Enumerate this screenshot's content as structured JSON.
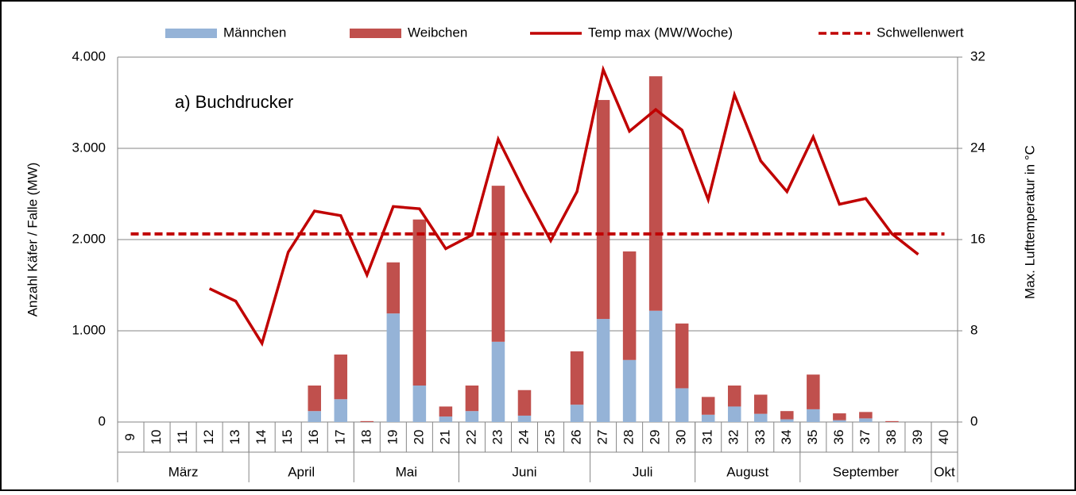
{
  "chart_data": {
    "type": "bar",
    "annotation": "a) Buchdrucker",
    "y_label": "Anzahl Käfer / Falle (MW)",
    "y2_label": "Max. Lufttemperatur in °C",
    "categories": [
      "9",
      "10",
      "11",
      "12",
      "13",
      "14",
      "15",
      "16",
      "17",
      "18",
      "19",
      "20",
      "21",
      "22",
      "23",
      "24",
      "25",
      "26",
      "27",
      "28",
      "29",
      "30",
      "31",
      "32",
      "33",
      "34",
      "35",
      "36",
      "37",
      "38",
      "39",
      "40"
    ],
    "x_groups": [
      {
        "label": "März",
        "from": "9",
        "to": "13"
      },
      {
        "label": "April",
        "from": "14",
        "to": "17"
      },
      {
        "label": "Mai",
        "from": "18",
        "to": "21"
      },
      {
        "label": "Juni",
        "from": "22",
        "to": "26"
      },
      {
        "label": "Juli",
        "from": "27",
        "to": "30"
      },
      {
        "label": "August",
        "from": "31",
        "to": "34"
      },
      {
        "label": "September",
        "from": "35",
        "to": "39"
      },
      {
        "label": "Okt",
        "from": "40",
        "to": "40"
      }
    ],
    "series": [
      {
        "name": "Männchen",
        "type": "bar",
        "color": "#95b3d7",
        "values": [
          0,
          0,
          0,
          0,
          0,
          0,
          0,
          120,
          250,
          0,
          1190,
          400,
          60,
          120,
          880,
          70,
          0,
          190,
          1130,
          680,
          1220,
          370,
          80,
          170,
          90,
          30,
          140,
          20,
          40,
          0,
          0,
          0
        ]
      },
      {
        "name": "Weibchen",
        "type": "bar",
        "color": "#c0504d",
        "values": [
          0,
          0,
          0,
          0,
          0,
          0,
          0,
          280,
          490,
          10,
          560,
          1820,
          110,
          280,
          1710,
          280,
          0,
          585,
          2400,
          1190,
          2570,
          710,
          195,
          230,
          210,
          90,
          380,
          75,
          70,
          10,
          0,
          0
        ]
      },
      {
        "name": "Temp max (MW/Woche)",
        "type": "line",
        "axis": "y2",
        "color": "#c00000",
        "dashed": false,
        "values": [
          null,
          null,
          null,
          11.7,
          10.6,
          6.9,
          14.9,
          18.5,
          18.1,
          12.9,
          18.9,
          18.7,
          15.2,
          16.4,
          24.8,
          20.2,
          15.9,
          20.2,
          30.9,
          25.5,
          27.4,
          25.6,
          19.5,
          28.7,
          22.9,
          20.2,
          25.0,
          19.1,
          19.6,
          16.5,
          14.7,
          null
        ]
      },
      {
        "name": "Schwellenwert",
        "type": "line",
        "axis": "y2",
        "color": "#c00000",
        "dashed": true,
        "values": [
          16.5,
          16.5,
          16.5,
          16.5,
          16.5,
          16.5,
          16.5,
          16.5,
          16.5,
          16.5,
          16.5,
          16.5,
          16.5,
          16.5,
          16.5,
          16.5,
          16.5,
          16.5,
          16.5,
          16.5,
          16.5,
          16.5,
          16.5,
          16.5,
          16.5,
          16.5,
          16.5,
          16.5,
          16.5,
          16.5,
          16.5,
          16.5
        ]
      }
    ],
    "stacked": true,
    "ylim": [
      0,
      4000
    ],
    "yticks": [
      0,
      {
        "value": 1000,
        "label": "1.000"
      },
      {
        "value": 2000,
        "label": "2.000"
      },
      {
        "value": 3000,
        "label": "3.000"
      },
      {
        "value": 4000,
        "label": "4.000"
      }
    ],
    "y2lim": [
      0,
      32
    ],
    "y2ticks": [
      0,
      8,
      16,
      24,
      32
    ],
    "grid": true,
    "legend": "top"
  }
}
